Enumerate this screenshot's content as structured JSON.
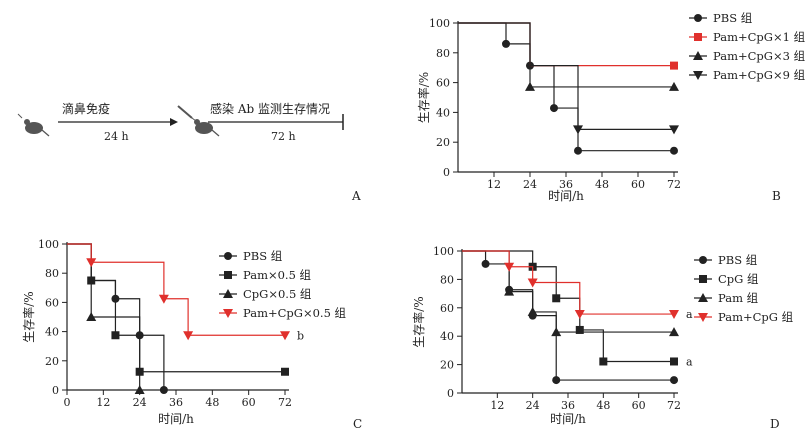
{
  "colors": {
    "black": "#222222",
    "red": "#e0302c",
    "blue": "#3a6fb0"
  },
  "panel_a": {
    "label": "A",
    "step1_text": "滴鼻免疫",
    "step1_time": "24 h",
    "step2_text": "感染 Ab 监测生存情况",
    "step2_time": "72 h",
    "icons": [
      "mouse-icon",
      "syringe-icon"
    ]
  },
  "chart_data": [
    {
      "type": "line",
      "panel": "B",
      "xlabel": "时间/h",
      "ylabel": "生存率/%",
      "xticks": [
        12,
        24,
        36,
        48,
        60,
        72
      ],
      "yticks": [
        0,
        20,
        40,
        60,
        80,
        100
      ],
      "xlim": [
        0,
        72
      ],
      "ylim": [
        0,
        100
      ],
      "grid": false,
      "legend_position": "right",
      "series": [
        {
          "name": "PBS 组",
          "marker": "circle",
          "color": "#222222",
          "steps": [
            [
              0,
              100
            ],
            [
              16,
              86
            ],
            [
              24,
              71.4
            ],
            [
              32,
              42.9
            ],
            [
              40,
              14.3
            ],
            [
              72,
              14.3
            ]
          ],
          "markers": [
            [
              16,
              86
            ],
            [
              24,
              71.4
            ],
            [
              32,
              42.9
            ],
            [
              40,
              14.3
            ],
            [
              72,
              14.3
            ]
          ]
        },
        {
          "name": "Pam+CpG×1 组",
          "marker": "square",
          "color": "#e0302c",
          "steps": [
            [
              0,
              100
            ],
            [
              24,
              71.4
            ],
            [
              72,
              71.4
            ]
          ],
          "markers": [
            [
              72,
              71.4
            ]
          ]
        },
        {
          "name": "Pam+CpG×3 组",
          "marker": "triangle-up",
          "color": "#222222",
          "steps": [
            [
              0,
              100
            ],
            [
              24,
              57.1
            ],
            [
              72,
              57.1
            ]
          ],
          "markers": [
            [
              24,
              57.1
            ],
            [
              72,
              57.1
            ]
          ]
        },
        {
          "name": "Pam+CpG×9 组",
          "marker": "triangle-down",
          "color": "#222222",
          "steps": [
            [
              0,
              100
            ],
            [
              24,
              71.4
            ],
            [
              40,
              28.6
            ],
            [
              72,
              28.6
            ]
          ],
          "markers": [
            [
              40,
              28.6
            ],
            [
              72,
              28.6
            ]
          ]
        }
      ]
    },
    {
      "type": "line",
      "panel": "C",
      "xlabel": "时间/h",
      "ylabel": "生存率/%",
      "xticks": [
        0,
        12,
        24,
        36,
        48,
        60,
        72
      ],
      "yticks": [
        0,
        20,
        40,
        60,
        80,
        100
      ],
      "xlim": [
        0,
        72
      ],
      "ylim": [
        0,
        100
      ],
      "grid": false,
      "legend_position": "right",
      "annotations": [
        {
          "text": "b",
          "x": 72,
          "y": 37.5
        }
      ],
      "series": [
        {
          "name": "PBS 组",
          "marker": "circle",
          "color": "#222222",
          "steps": [
            [
              0,
              100
            ],
            [
              8,
              75
            ],
            [
              16,
              62.5
            ],
            [
              24,
              37.5
            ],
            [
              32,
              0
            ]
          ],
          "markers": [
            [
              16,
              62.5
            ],
            [
              24,
              37.5
            ],
            [
              32,
              0
            ]
          ]
        },
        {
          "name": "Pam×0.5 组",
          "marker": "square",
          "color": "#222222",
          "steps": [
            [
              0,
              100
            ],
            [
              8,
              75
            ],
            [
              16,
              37.5
            ],
            [
              24,
              12.5
            ],
            [
              72,
              12.5
            ]
          ],
          "markers": [
            [
              8,
              75
            ],
            [
              16,
              37.5
            ],
            [
              24,
              12.5
            ],
            [
              72,
              12.5
            ]
          ]
        },
        {
          "name": "CpG×0.5 组",
          "marker": "triangle-up",
          "color": "#222222",
          "steps": [
            [
              0,
              100
            ],
            [
              8,
              50
            ],
            [
              24,
              0
            ]
          ],
          "markers": [
            [
              8,
              50
            ],
            [
              24,
              0
            ]
          ]
        },
        {
          "name": "Pam+CpG×0.5 组",
          "marker": "triangle-down",
          "color": "#e0302c",
          "steps": [
            [
              0,
              100
            ],
            [
              8,
              87.5
            ],
            [
              32,
              62.5
            ],
            [
              40,
              37.5
            ],
            [
              72,
              37.5
            ]
          ],
          "markers": [
            [
              8,
              87.5
            ],
            [
              32,
              62.5
            ],
            [
              40,
              37.5
            ],
            [
              72,
              37.5
            ]
          ]
        }
      ]
    },
    {
      "type": "line",
      "panel": "D",
      "xlabel": "时间/h",
      "ylabel": "生存率/%",
      "xticks": [
        12,
        24,
        36,
        48,
        60,
        72
      ],
      "yticks": [
        0,
        20,
        40,
        60,
        80,
        100
      ],
      "xlim": [
        0,
        72
      ],
      "ylim": [
        0,
        100
      ],
      "grid": false,
      "legend_position": "right",
      "annotations": [
        {
          "text": "a",
          "x": 72,
          "y": 55.6
        },
        {
          "text": "a",
          "x": 72,
          "y": 22.2
        }
      ],
      "series": [
        {
          "name": "PBS 组",
          "marker": "circle",
          "color": "#222222",
          "steps": [
            [
              0,
              100
            ],
            [
              8,
              90.9
            ],
            [
              16,
              72.7
            ],
            [
              24,
              54.5
            ],
            [
              32,
              9.1
            ],
            [
              72,
              9.1
            ]
          ],
          "markers": [
            [
              8,
              90.9
            ],
            [
              16,
              72.7
            ],
            [
              24,
              54.5
            ],
            [
              32,
              9.1
            ],
            [
              72,
              9.1
            ]
          ]
        },
        {
          "name": "CpG 组",
          "marker": "square",
          "color": "#222222",
          "steps": [
            [
              0,
              100
            ],
            [
              24,
              88.9
            ],
            [
              32,
              66.7
            ],
            [
              40,
              44.4
            ],
            [
              48,
              22.2
            ],
            [
              72,
              22.2
            ]
          ],
          "markers": [
            [
              24,
              88.9
            ],
            [
              32,
              66.7
            ],
            [
              40,
              44.4
            ],
            [
              48,
              22.2
            ],
            [
              72,
              22.2
            ]
          ]
        },
        {
          "name": "Pam 组",
          "marker": "triangle-up",
          "color": "#222222",
          "steps": [
            [
              0,
              100
            ],
            [
              16,
              71.4
            ],
            [
              24,
              57.1
            ],
            [
              32,
              42.9
            ],
            [
              72,
              42.9
            ]
          ],
          "markers": [
            [
              16,
              71.4
            ],
            [
              24,
              57.1
            ],
            [
              32,
              42.9
            ],
            [
              72,
              42.9
            ]
          ]
        },
        {
          "name": "Pam+CpG 组",
          "marker": "triangle-down",
          "color": "#e0302c",
          "steps": [
            [
              0,
              100
            ],
            [
              16,
              88.9
            ],
            [
              24,
              77.8
            ],
            [
              40,
              55.6
            ],
            [
              72,
              55.6
            ]
          ],
          "markers": [
            [
              16,
              88.9
            ],
            [
              24,
              77.8
            ],
            [
              40,
              55.6
            ],
            [
              72,
              55.6
            ]
          ]
        }
      ]
    }
  ]
}
